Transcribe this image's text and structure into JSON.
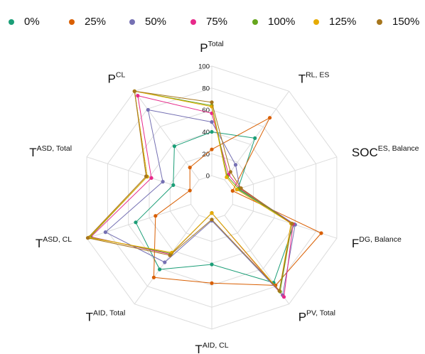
{
  "chart_data": {
    "type": "radar",
    "axes": [
      {
        "base": "P",
        "sup": "Total"
      },
      {
        "base": "T",
        "sup": "RL, ES"
      },
      {
        "base": "SOC",
        "sup": "ES, Balance"
      },
      {
        "base": "F",
        "sup": "DG, Balance"
      },
      {
        "base": "P",
        "sup": "PV, Total"
      },
      {
        "base": "T",
        "sup": "AID, CL"
      },
      {
        "base": "T",
        "sup": "AID, Total"
      },
      {
        "base": "T",
        "sup": "ASD, CL"
      },
      {
        "base": "T",
        "sup": "ASD, Total"
      },
      {
        "base": "P",
        "sup": "CL"
      }
    ],
    "ticks": [
      0,
      20,
      40,
      60,
      80,
      100
    ],
    "range": [
      -20,
      100
    ],
    "grid": "decagon",
    "legend_position": "top",
    "series": [
      {
        "name": "0%",
        "color": "#1b9e77",
        "values": [
          40,
          47,
          5,
          59,
          76,
          41,
          61,
          53,
          17,
          38
        ]
      },
      {
        "name": "25%",
        "color": "#d95f02",
        "values": [
          24,
          70,
          0,
          85,
          79,
          58,
          70,
          34,
          1,
          14
        ]
      },
      {
        "name": "50%",
        "color": "#7570b3",
        "values": [
          49,
          17,
          7,
          60,
          90,
          1,
          53,
          82,
          27,
          79
        ]
      },
      {
        "name": "75%",
        "color": "#e7298a",
        "values": [
          57,
          6,
          7,
          58,
          92,
          -6,
          44,
          96,
          38,
          95
        ]
      },
      {
        "name": "100%",
        "color": "#66a61e",
        "values": [
          64,
          4,
          6,
          57,
          86,
          -6,
          43,
          97,
          42,
          100
        ]
      },
      {
        "name": "125%",
        "color": "#e6ab02",
        "values": [
          63,
          3,
          4,
          56,
          85,
          -6,
          42,
          98,
          42,
          100
        ]
      },
      {
        "name": "150%",
        "color": "#a6761d",
        "values": [
          67,
          9,
          8,
          57,
          85,
          0,
          45,
          99,
          43,
          100
        ]
      }
    ]
  }
}
